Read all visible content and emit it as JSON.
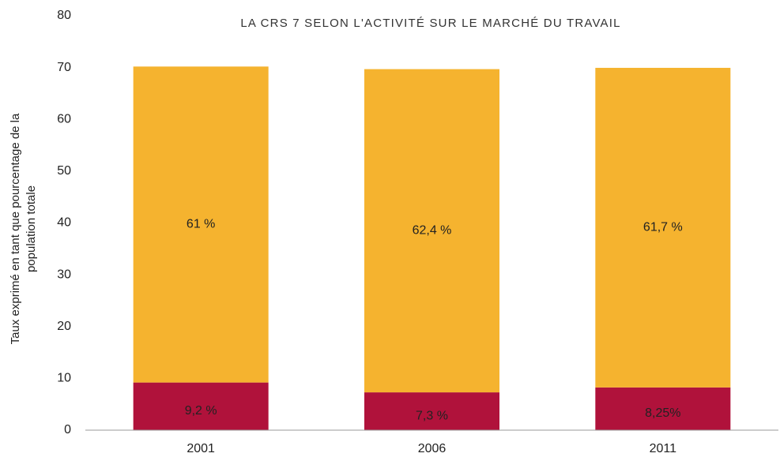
{
  "chart_data": {
    "type": "stacked-bar",
    "title": "LA CRS 7 SELON L'ACTIVITÉ SUR LE MARCHÉ DU TRAVAIL",
    "ylabel": [
      "Taux exprimé en tant que pourcentage de la",
      "population totale"
    ],
    "categories": [
      "2001",
      "2006",
      "2011"
    ],
    "series": [
      {
        "color": "#b0123b",
        "values": [
          9.2,
          7.3,
          8.25
        ],
        "value_labels": [
          "9,2 %",
          "7,3 %",
          "8,25%"
        ]
      },
      {
        "color": "#f5b32f",
        "values": [
          61,
          62.4,
          61.7
        ],
        "value_labels": [
          "61 %",
          "62,4 %",
          "61,7 %"
        ]
      }
    ],
    "ylim": [
      0,
      80
    ],
    "yticks": [
      0,
      10,
      20,
      30,
      40,
      50,
      60,
      70,
      80
    ],
    "grid": false
  }
}
